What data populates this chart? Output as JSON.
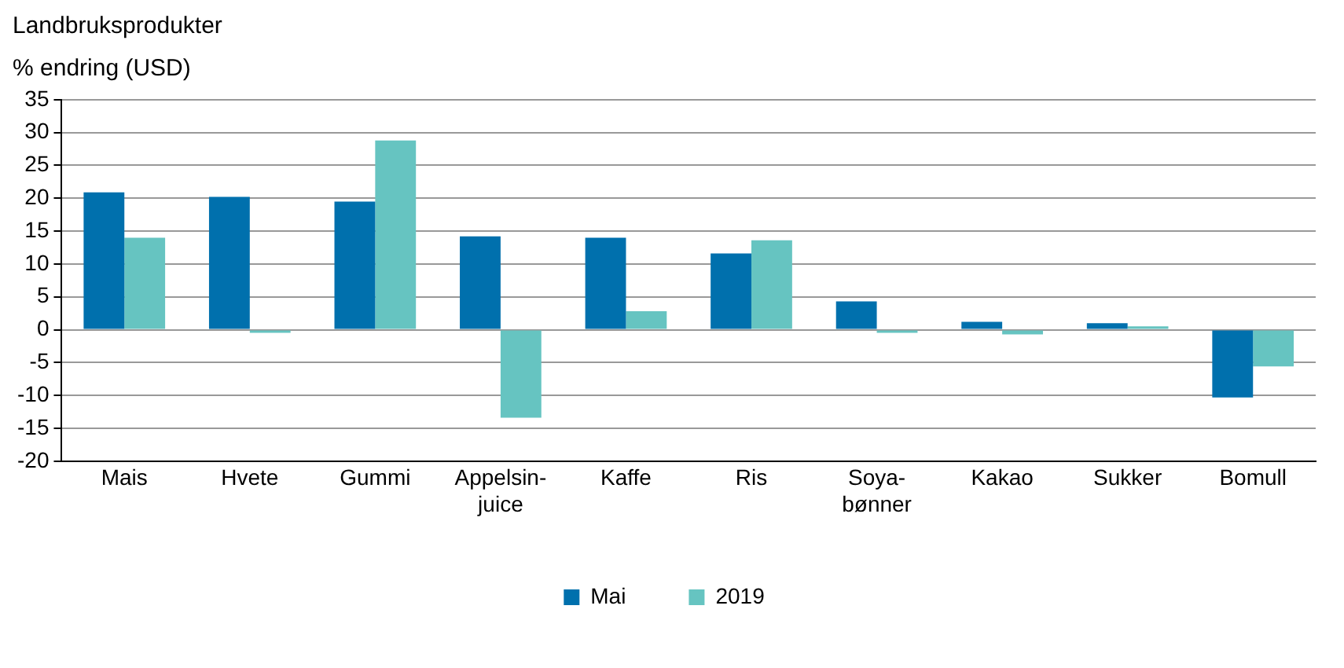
{
  "chart_data": {
    "type": "bar",
    "title": "Landbruksprodukter",
    "ylabel": "% endring (USD)",
    "categories": [
      "Mais",
      "Hvete",
      "Gummi",
      "Appelsin-\njuice",
      "Kaffe",
      "Ris",
      "Soya-\nbønner",
      "Kakao",
      "Sukker",
      "Bomull"
    ],
    "series": [
      {
        "name": "Mai",
        "color": "#0070ad",
        "values": [
          20.9,
          20.2,
          19.5,
          14.2,
          14.0,
          11.6,
          4.3,
          1.2,
          1.0,
          -10.3
        ]
      },
      {
        "name": "2019",
        "color": "#66c4c1",
        "values": [
          14.0,
          -0.3,
          28.8,
          -13.4,
          2.8,
          13.6,
          -0.3,
          -0.7,
          0.5,
          -5.6
        ]
      }
    ],
    "ylim": [
      -20,
      35
    ],
    "yticks": [
      -20,
      -15,
      -10,
      -5,
      0,
      5,
      10,
      15,
      20,
      25,
      30,
      35
    ],
    "grid": "y",
    "legend": "bottom"
  }
}
